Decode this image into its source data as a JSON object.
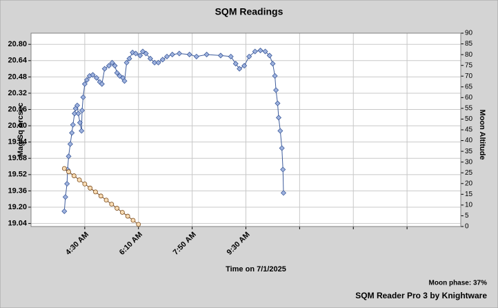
{
  "chart_data": {
    "type": "line",
    "title": "SQM Readings",
    "xlabel": "Time on 7/1/2025",
    "ylabel": "Mag/Sq Arcsec",
    "y2label": "Moon Altitude",
    "note": "Moon phase: 37%",
    "footer": "SQM Reader Pro 3 by Knightware",
    "xlim": [
      "02:50",
      "16:10"
    ],
    "xticks": [
      {
        "value": "04:30",
        "label": "4:30 AM"
      },
      {
        "value": "06:10",
        "label": "6:10 AM"
      },
      {
        "value": "07:50",
        "label": "7:50 AM"
      },
      {
        "value": "09:30",
        "label": "9:30 AM"
      },
      {
        "value": "11:10",
        "label": null
      },
      {
        "value": "12:50",
        "label": null
      },
      {
        "value": "14:30",
        "label": null
      }
    ],
    "ylim": [
      19.01,
      20.91
    ],
    "yticks": [
      {
        "value": 20.8,
        "label": "20.80"
      },
      20.64,
      20.48,
      20.32,
      20.16,
      {
        "value": 20.0,
        "label": "20.00"
      },
      19.84,
      19.68,
      19.52,
      19.36,
      {
        "value": 19.2,
        "label": "19.20"
      },
      19.04
    ],
    "y2lim": [
      0,
      90
    ],
    "y2ticks": [
      0,
      5,
      10,
      15,
      20,
      25,
      30,
      35,
      40,
      45,
      50,
      55,
      60,
      65,
      70,
      75,
      80,
      85,
      90
    ],
    "grid": true,
    "series": [
      {
        "color": "#3c5a9a",
        "marker_fill": "#9fb3df",
        "marker": "diamond",
        "x": [
          "03:52",
          "03:54",
          "03:57",
          "03:58",
          "04:00",
          "04:03",
          "04:06",
          "04:08",
          "04:11",
          "04:13",
          "04:16",
          "04:18",
          "04:21",
          "04:24",
          "04:25",
          "04:27",
          "04:30",
          "04:34",
          "04:39",
          "04:45",
          "04:52",
          "04:58",
          "05:02",
          "05:07",
          "05:15",
          "05:21",
          "05:26",
          "05:30",
          "05:35",
          "05:41",
          "05:44",
          "05:48",
          "05:53",
          "05:59",
          "06:05",
          "06:13",
          "06:18",
          "06:24",
          "06:32",
          "06:40",
          "06:47",
          "06:55",
          "07:03",
          "07:13",
          "07:26",
          "07:45",
          "07:58",
          "08:17",
          "08:43",
          "09:02",
          "09:11",
          "09:18",
          "09:27",
          "09:36",
          "09:47",
          "09:57",
          "10:06",
          "10:14",
          "10:20",
          "10:24",
          "10:26",
          "10:29",
          "10:31",
          "10:34",
          "10:37",
          "10:39",
          "10:40"
        ],
        "values": [
          19.16,
          19.3,
          19.43,
          19.57,
          19.7,
          19.82,
          19.93,
          20.01,
          20.12,
          20.17,
          20.2,
          20.12,
          20.03,
          19.95,
          20.15,
          20.28,
          20.41,
          20.45,
          20.49,
          20.5,
          20.47,
          20.43,
          20.41,
          20.56,
          20.59,
          20.62,
          20.59,
          20.52,
          20.49,
          20.47,
          20.44,
          20.62,
          20.66,
          20.72,
          20.71,
          20.69,
          20.73,
          20.71,
          20.66,
          20.62,
          20.62,
          20.65,
          20.68,
          20.7,
          20.71,
          20.7,
          20.68,
          20.7,
          20.69,
          20.68,
          20.61,
          20.56,
          20.59,
          20.68,
          20.73,
          20.74,
          20.73,
          20.69,
          20.61,
          20.49,
          20.35,
          20.22,
          20.08,
          19.95,
          19.78,
          19.57,
          19.34
        ]
      },
      {
        "color": "#7a4a1a",
        "marker_fill": "#f8dcb4",
        "marker": "circle",
        "axis": "y2",
        "x": [
          "03:52",
          "04:00",
          "04:10",
          "04:20",
          "04:30",
          "04:40",
          "04:50",
          "05:00",
          "05:10",
          "05:20",
          "05:30",
          "05:40",
          "05:50",
          "06:00",
          "06:10"
        ],
        "values": [
          27.0,
          25.5,
          23.6,
          21.7,
          19.8,
          17.9,
          16.1,
          14.2,
          12.3,
          10.4,
          8.5,
          6.6,
          4.8,
          2.9,
          1.0
        ]
      }
    ]
  }
}
